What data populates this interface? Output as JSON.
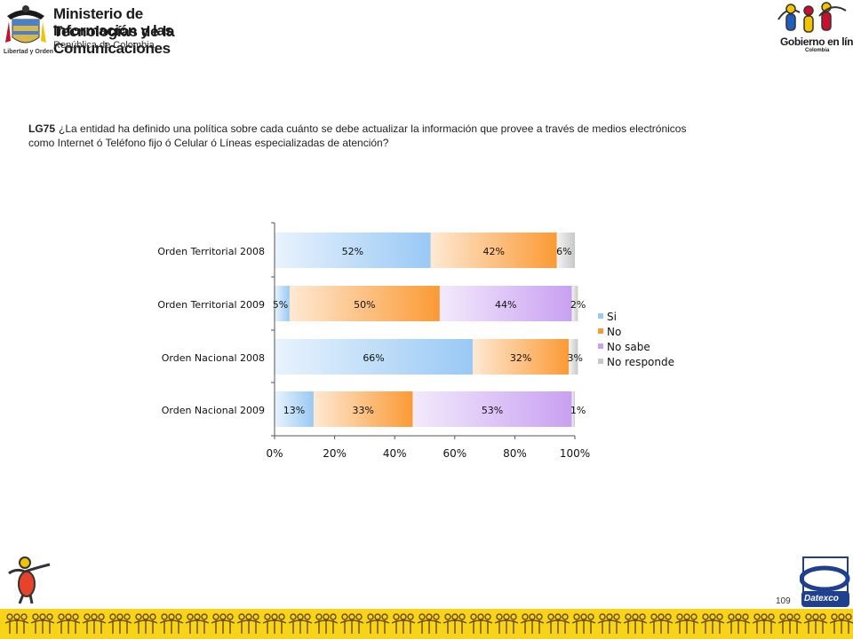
{
  "header": {
    "ministry_line1": "Ministerio de Tecnologías de la",
    "ministry_line2": "Información y las Comunicaciones",
    "ministry_line3": "República de Colombia",
    "motto": "Libertad y Orden",
    "brand": "Gobierno en línea",
    "brand_country": "Colombia"
  },
  "question": {
    "code": "LG75",
    "text": "¿La entidad ha definido una política sobre cada cuánto se debe actualizar la información que provee a través de medios electrónicos como Internet ó Teléfono fijo ó Celular ó Líneas especializadas de atención?"
  },
  "chart_data": {
    "type": "bar",
    "orientation": "horizontal",
    "stacked": "percent",
    "categories": [
      "Orden Territorial 2008",
      "Orden Territorial 2009",
      "Orden Nacional 2008",
      "Orden Nacional 2009"
    ],
    "series": [
      {
        "name": "Si",
        "values": [
          52,
          5,
          66,
          13
        ],
        "labels": [
          "52%",
          "5%",
          "66%",
          "13%"
        ],
        "color": "#99c9f5"
      },
      {
        "name": "No",
        "values": [
          42,
          50,
          32,
          33
        ],
        "labels": [
          "42%",
          "50%",
          "32%",
          "33%"
        ],
        "color": "#fb9a35"
      },
      {
        "name": "No sabe",
        "values": [
          0,
          44,
          0,
          53
        ],
        "labels": [
          "",
          "44%",
          "",
          "53%"
        ],
        "color": "#c9a0f2"
      },
      {
        "name": "No responde",
        "values": [
          6,
          2,
          3,
          1
        ],
        "labels": [
          "6%",
          "2%",
          "3%",
          "1%"
        ],
        "color": "#c8c8c8"
      }
    ],
    "xticks": [
      "0%",
      "20%",
      "40%",
      "60%",
      "80%",
      "100%"
    ],
    "xlim": [
      0,
      100
    ],
    "legend": "right",
    "grid": false
  },
  "footer": {
    "page_number": "109",
    "logo": "Datexco"
  }
}
